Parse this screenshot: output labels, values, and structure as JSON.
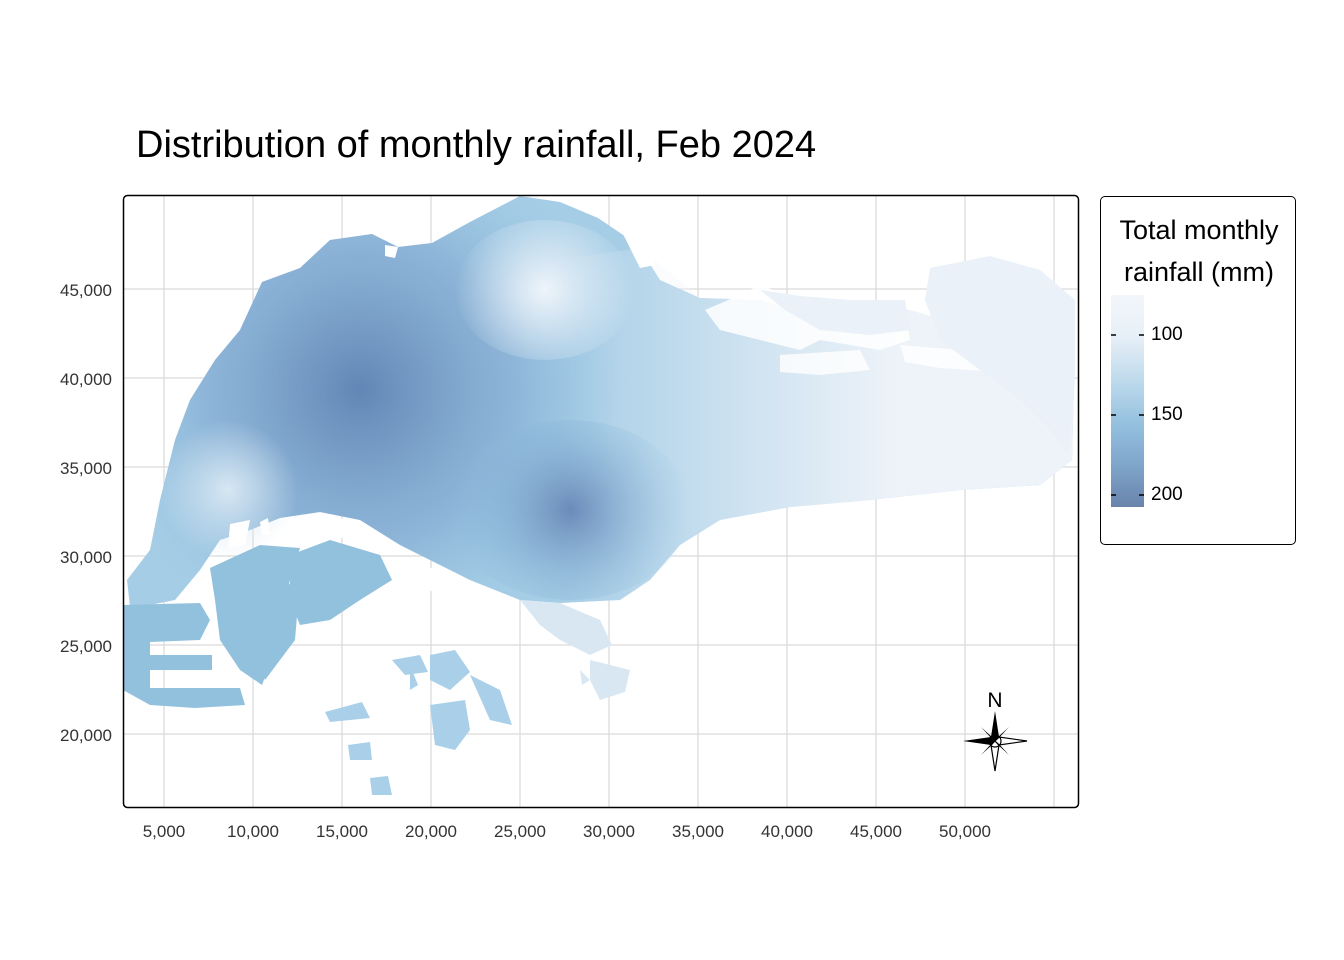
{
  "title": "Distribution of monthly rainfall, Feb 2024",
  "legend": {
    "title_line1": "Total monthly",
    "title_line2": "rainfall (mm)",
    "ticks": [
      "100",
      "150",
      "200"
    ],
    "colors": {
      "low": "#f2f6fb",
      "mid": "#8ec0df",
      "high": "#6b89b0"
    }
  },
  "compass": {
    "label": "N"
  },
  "axes": {
    "x_ticks": [
      "5,000",
      "10,000",
      "15,000",
      "20,000",
      "25,000",
      "30,000",
      "35,000",
      "40,000",
      "45,000",
      "50,000"
    ],
    "y_ticks": [
      "45,000",
      "40,000",
      "35,000",
      "30,000",
      "25,000",
      "20,000"
    ]
  }
}
